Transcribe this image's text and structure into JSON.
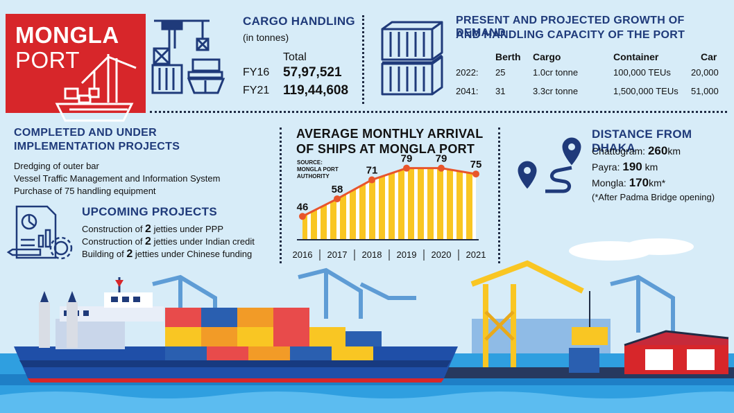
{
  "title_block": {
    "line1": "MONGLA",
    "line2": "PORT",
    "bg_color": "#d7262a"
  },
  "cargo": {
    "heading": "CARGO HANDLING",
    "unit": "(in tonnes)",
    "total_label": "Total",
    "rows": [
      {
        "year": "FY16",
        "value": "57,97,521"
      },
      {
        "year": "FY21",
        "value": "119,44,608"
      }
    ]
  },
  "growth": {
    "heading_line1": "PRESENT AND PROJECTED GROWTH OF DEMAND",
    "heading_line2": "AND HANDLING CAPACITY OF THE PORT",
    "columns": [
      "Berth",
      "Cargo",
      "Container",
      "Car"
    ],
    "rows": [
      {
        "year": "2022:",
        "berth": "25",
        "cargo": "1.0cr tonne",
        "container": "100,000 TEUs",
        "car": "20,000"
      },
      {
        "year": "2041:",
        "berth": "31",
        "cargo": "3.3cr tonne",
        "container": "1,500,000 TEUs",
        "car": "51,000"
      }
    ]
  },
  "completed": {
    "heading_line1": "COMPLETED AND UNDER",
    "heading_line2": "IMPLEMENTATION PROJECTS",
    "items": [
      "Dredging of outer bar",
      "Vessel Traffic Management and Information System",
      "Purchase of 75 handling equipment"
    ]
  },
  "upcoming": {
    "heading": "UPCOMING PROJECTS",
    "items": [
      {
        "pre": "Construction of ",
        "num": "2",
        "post": " jetties under PPP"
      },
      {
        "pre": "Construction of ",
        "num": "2",
        "post": " jetties under Indian credit"
      },
      {
        "pre": "Building of ",
        "num": "2",
        "post": " jetties under Chinese funding"
      }
    ]
  },
  "chart_heading": {
    "line1": "AVERAGE MONTHLY ARRIVAL",
    "line2": "OF SHIPS AT MONGLA PORT",
    "source_line1": "SOURCE:",
    "source_line2": "MONGLA PORT",
    "source_line3": "AUTHORITY"
  },
  "chart_data": {
    "type": "area",
    "categories": [
      "2016",
      "2017",
      "2018",
      "2019",
      "2020",
      "2021"
    ],
    "values": [
      46,
      58,
      71,
      79,
      79,
      75
    ],
    "title": "AVERAGE MONTHLY ARRIVAL OF SHIPS AT MONGLA PORT",
    "xlabel": "",
    "ylabel": "",
    "ylim": [
      30,
      85
    ],
    "line_color": "#e8552b",
    "fill_color": "#f9c623"
  },
  "distance": {
    "heading": "DISTANCE FROM DHAKA",
    "items": [
      {
        "place": "Chattogram: ",
        "num": "260",
        "unit": "km"
      },
      {
        "place": "Payra: ",
        "num": "190",
        "unit": " km"
      },
      {
        "place": "Mongla: ",
        "num": "170",
        "unit": "km*"
      }
    ],
    "note": "(*After Padma Bridge opening)"
  },
  "colors": {
    "navy": "#1f3a7a",
    "red": "#d7262a",
    "sky": "#d7ecf8",
    "sea": "#2f9fe0",
    "yellow": "#f9c623",
    "orange": "#e8552b"
  }
}
